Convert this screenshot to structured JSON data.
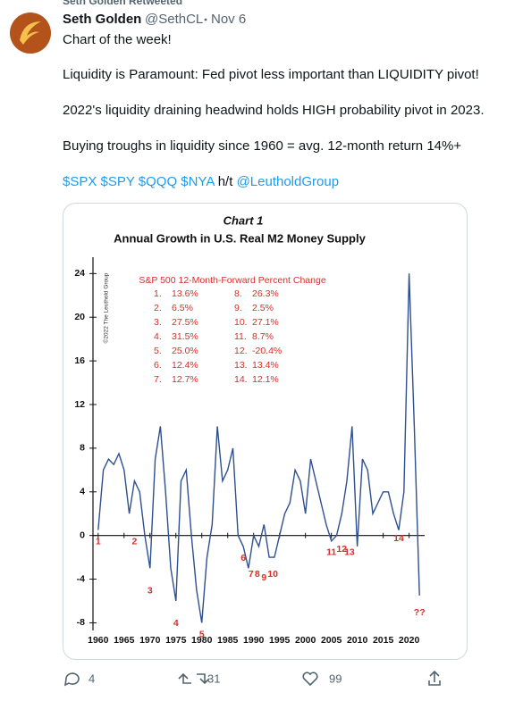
{
  "retweet_label": "Seth Golden Retweeted",
  "author": {
    "name": "Seth Golden",
    "handle": "@SethCL",
    "date": "Nov 6"
  },
  "text": [
    "Chart of the week!",
    "Liquidity is Paramount: Fed pivot less important than LIQUIDITY pivot!",
    "2022's liquidity draining headwind holds HIGH probability pivot in 2023.",
    "Buying troughs in liquidity since 1960 = avg. 12-month return 14%+"
  ],
  "links": {
    "cashtags": "$SPX $SPY $QQQ $NYA",
    "hat_tip": "h/t",
    "mention": "@LeutholdGroup"
  },
  "chart_data": {
    "type": "line",
    "title": "Chart 1",
    "subtitle": "Annual Growth in U.S. Real M2 Money Supply",
    "credit": "©2022 The Leuthold Group",
    "inset_title": "S&P 500 12-Month-Forward Percent Change",
    "inset_items": [
      [
        "1.",
        "13.6%"
      ],
      [
        "2.",
        "6.5%"
      ],
      [
        "3.",
        "27.5%"
      ],
      [
        "4.",
        "31.5%"
      ],
      [
        "5.",
        "25.0%"
      ],
      [
        "6.",
        "12.4%"
      ],
      [
        "7.",
        "12.7%"
      ],
      [
        "8.",
        "26.3%"
      ],
      [
        "9.",
        "2.5%"
      ],
      [
        "10.",
        "27.1%"
      ],
      [
        "11.",
        "8.7%"
      ],
      [
        "12.",
        "-20.4%"
      ],
      [
        "13.",
        "13.4%"
      ],
      [
        "14.",
        "12.1%"
      ]
    ],
    "x": [
      1960,
      1961,
      1962,
      1963,
      1964,
      1965,
      1966,
      1967,
      1968,
      1969,
      1970,
      1971,
      1972,
      1973,
      1974,
      1975,
      1976,
      1977,
      1978,
      1979,
      1980,
      1981,
      1982,
      1983,
      1984,
      1985,
      1986,
      1987,
      1988,
      1989,
      1990,
      1991,
      1992,
      1993,
      1994,
      1995,
      1996,
      1997,
      1998,
      1999,
      2000,
      2001,
      2002,
      2003,
      2004,
      2005,
      2006,
      2007,
      2008,
      2009,
      2010,
      2011,
      2012,
      2013,
      2014,
      2015,
      2016,
      2017,
      2018,
      2019,
      2020,
      2021,
      2022
    ],
    "series": [
      {
        "name": "Real M2 growth",
        "color": "#2f4f8f",
        "values": [
          0.5,
          6,
          7,
          6.5,
          7.5,
          6,
          2,
          5,
          4,
          0,
          -3,
          7,
          10,
          4,
          -3,
          -6,
          5,
          6,
          0,
          -5,
          -8,
          -2,
          1,
          10,
          5,
          6,
          8,
          0,
          -1,
          -3,
          0,
          -1,
          1,
          -2,
          -2,
          0,
          2,
          3,
          6,
          5,
          2,
          7,
          5,
          3,
          1,
          -0.5,
          0,
          2,
          5,
          10,
          -1,
          7,
          6,
          2,
          3,
          4,
          4,
          2,
          0.5,
          4,
          24,
          10,
          -5.5
        ]
      }
    ],
    "annotations": [
      {
        "text": "1",
        "x": 1960,
        "y": 0
      },
      {
        "text": "2",
        "x": 1967,
        "y": 0
      },
      {
        "text": "3",
        "x": 1970,
        "y": -4.5
      },
      {
        "text": "4",
        "x": 1975,
        "y": -7.5
      },
      {
        "text": "5",
        "x": 1980,
        "y": -8.5
      },
      {
        "text": "6",
        "x": 1988,
        "y": -1.5
      },
      {
        "text": "7",
        "x": 1989.5,
        "y": -3
      },
      {
        "text": "8",
        "x": 1990.7,
        "y": -3
      },
      {
        "text": "9",
        "x": 1992,
        "y": -3.3
      },
      {
        "text": "10",
        "x": 1993.7,
        "y": -3
      },
      {
        "text": "11",
        "x": 2005,
        "y": -1
      },
      {
        "text": "12",
        "x": 2007,
        "y": -0.7
      },
      {
        "text": "13",
        "x": 2008.5,
        "y": -1
      },
      {
        "text": "14",
        "x": 2018,
        "y": 0.3
      },
      {
        "text": "??",
        "x": 2022,
        "y": -6.5
      }
    ],
    "xlim": [
      1959,
      2023
    ],
    "ylim": [
      -8.7,
      25.5
    ],
    "xticks": [
      1960,
      1965,
      1970,
      1975,
      1980,
      1985,
      1990,
      1995,
      2000,
      2005,
      2010,
      2015,
      2020
    ],
    "yticks": [
      -8,
      -4,
      0,
      4,
      8,
      12,
      16,
      20,
      24
    ]
  },
  "actions": {
    "replies": 4,
    "retweets": 31,
    "likes": 99
  }
}
